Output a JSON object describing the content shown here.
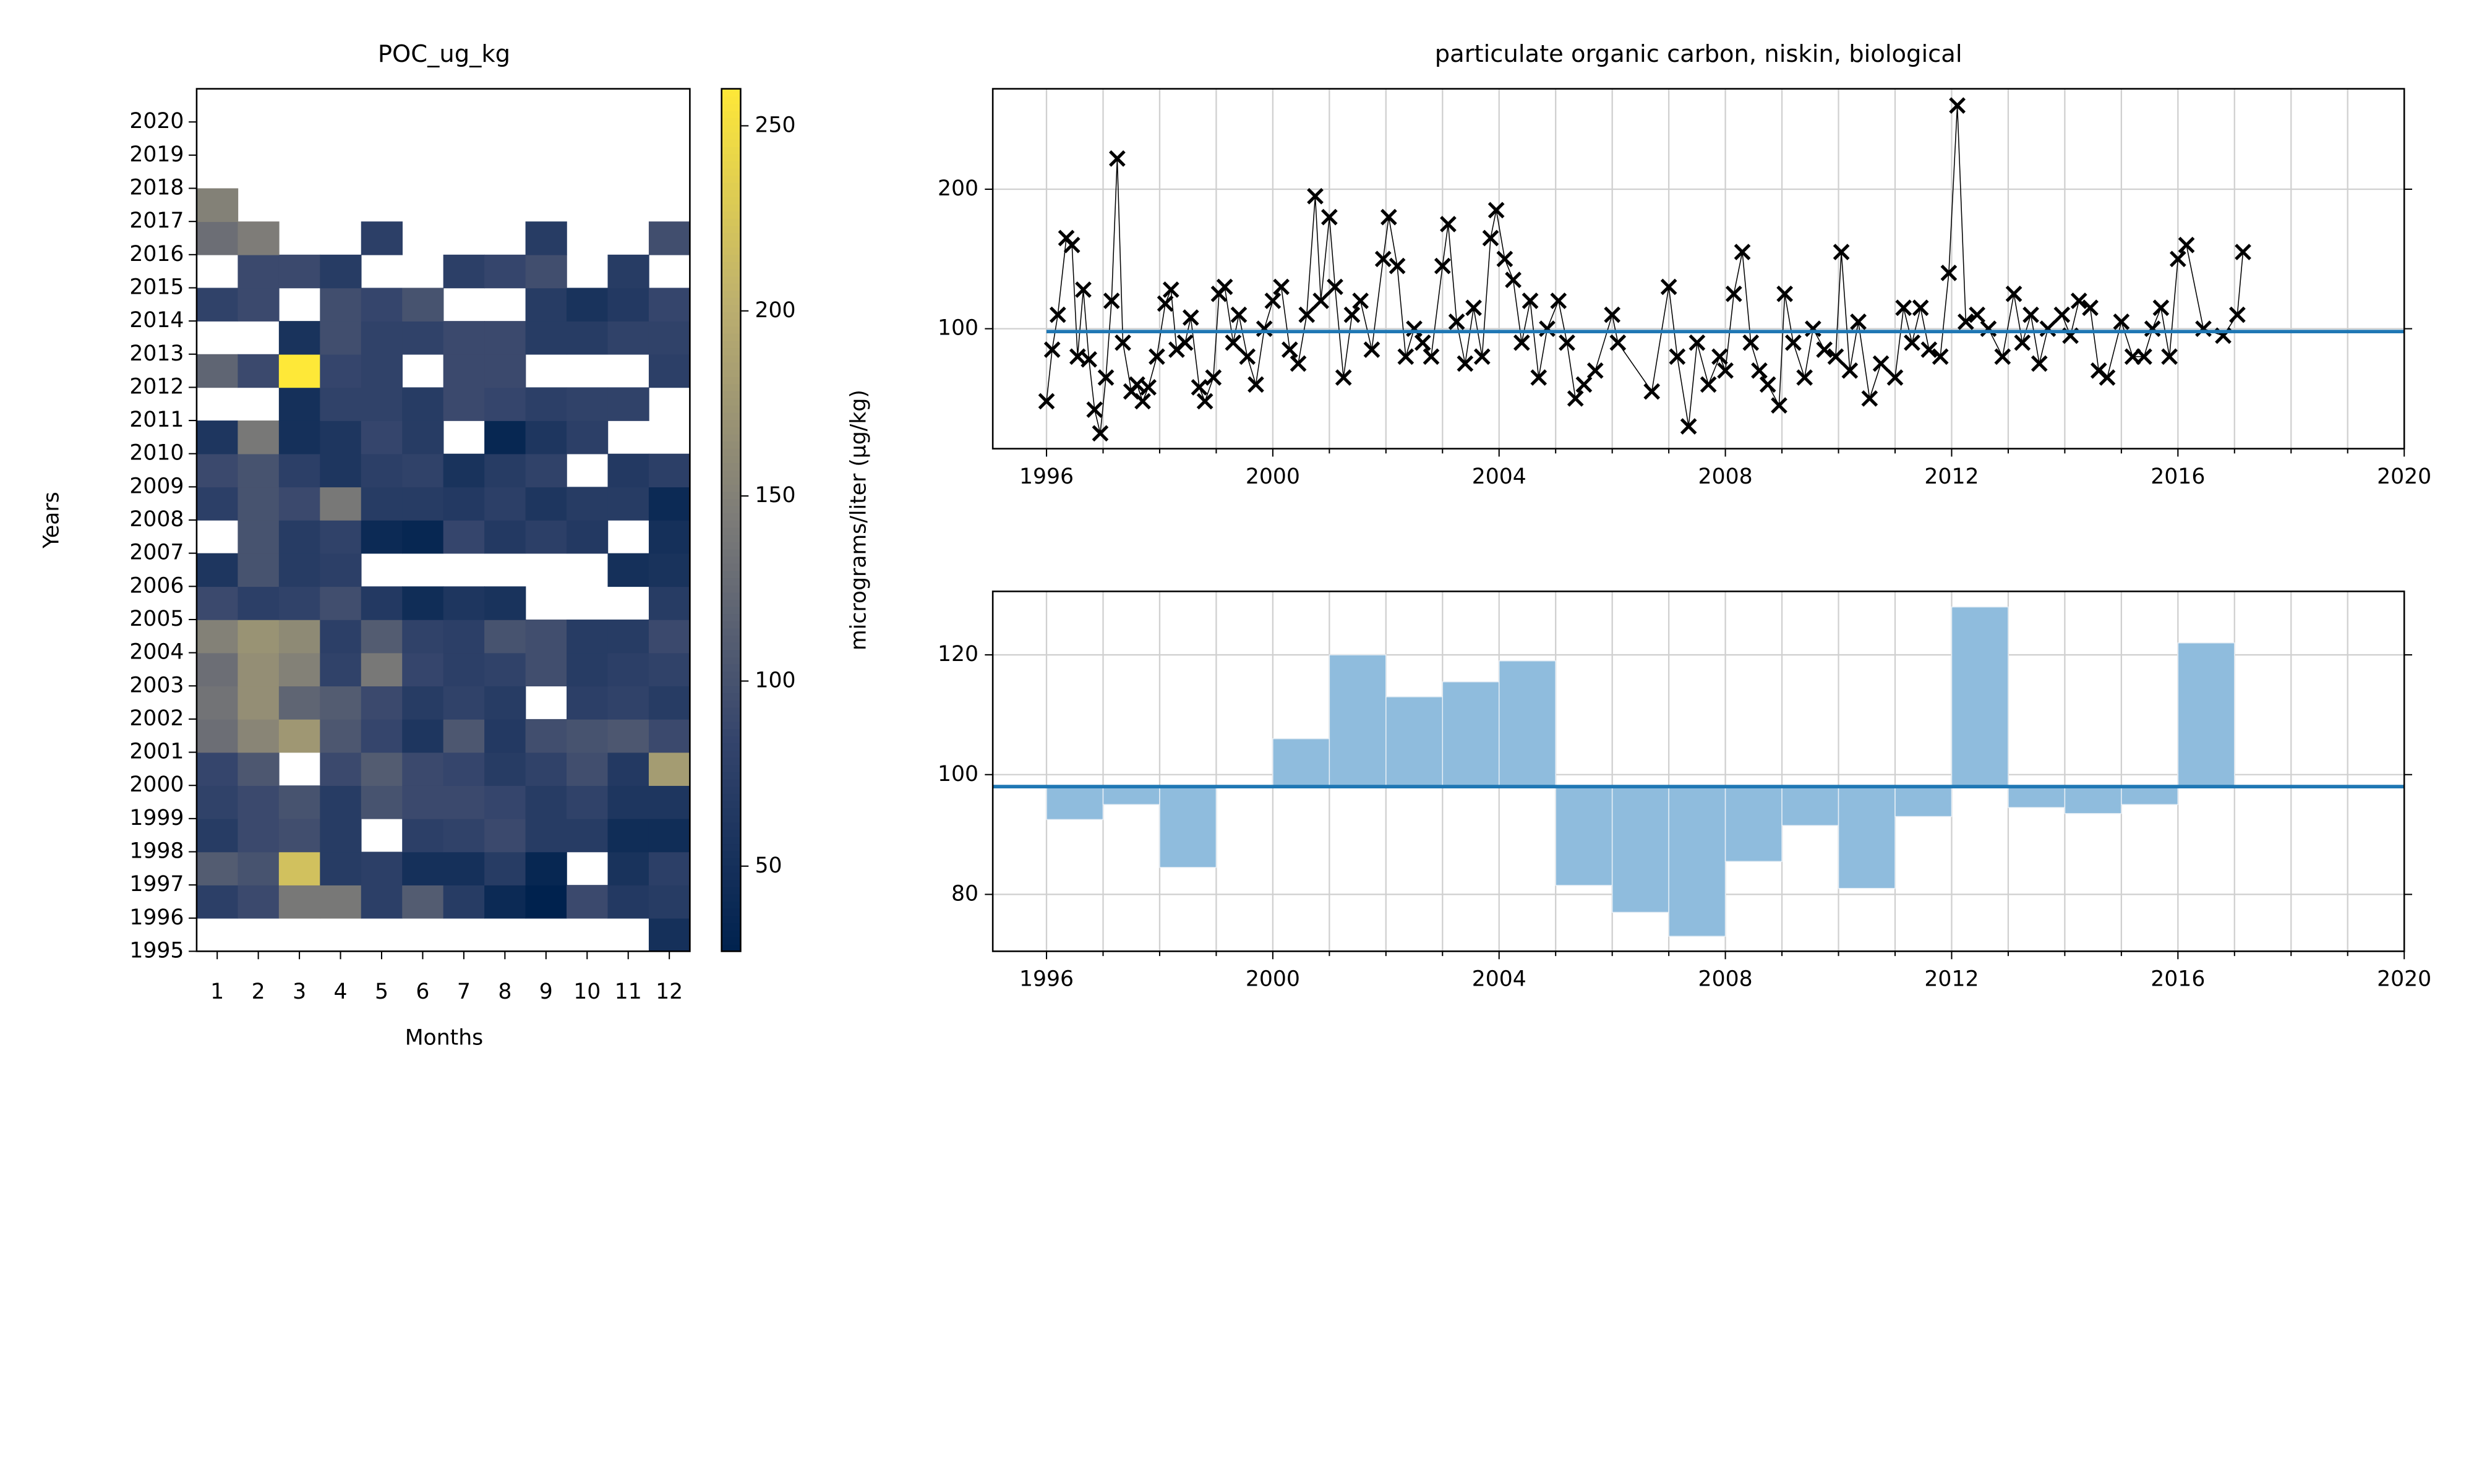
{
  "chart_data": [
    {
      "type": "heatmap",
      "title": "POC_ug_kg",
      "x_label": "Months",
      "y_label": "Years",
      "colorbar_label": "micrograms/liter (µg/kg)",
      "colormap": "cividis",
      "clim": [
        27,
        260
      ],
      "cticks": [
        50,
        100,
        150,
        200,
        250
      ],
      "xlim": [
        0.5,
        12.5
      ],
      "ylim": [
        1995,
        2021
      ],
      "xticks": [
        1,
        2,
        3,
        4,
        5,
        6,
        7,
        8,
        9,
        10,
        11,
        12
      ],
      "yticks": [
        1995,
        1996,
        1997,
        1998,
        1999,
        2000,
        2001,
        2002,
        2003,
        2004,
        2005,
        2006,
        2007,
        2008,
        2009,
        2010,
        2011,
        2012,
        2013,
        2014,
        2015,
        2016,
        2017,
        2018,
        2019,
        2020
      ],
      "x": [
        1,
        2,
        3,
        4,
        5,
        6,
        7,
        8,
        9,
        10,
        11,
        12
      ],
      "y": [
        1996,
        1997,
        1998,
        1999,
        2000,
        2001,
        2002,
        2003,
        2004,
        2005,
        2006,
        2007,
        2008,
        2009,
        2010,
        2011,
        2012,
        2013,
        2014,
        2015,
        2016,
        2017,
        2018
      ],
      "values": [
        [
          null,
          null,
          null,
          null,
          null,
          null,
          null,
          null,
          null,
          null,
          null,
          50
        ],
        [
          75,
          90,
          140,
          140,
          75,
          110,
          70,
          40,
          27,
          90,
          65,
          70
        ],
        [
          110,
          100,
          220,
          70,
          75,
          50,
          50,
          70,
          35,
          null,
          55,
          75
        ],
        [
          70,
          90,
          95,
          70,
          null,
          75,
          80,
          90,
          70,
          70,
          45,
          45
        ],
        [
          80,
          90,
          100,
          70,
          100,
          90,
          90,
          85,
          70,
          80,
          60,
          60
        ],
        [
          85,
          105,
          null,
          90,
          110,
          90,
          85,
          70,
          80,
          95,
          65,
          180
        ],
        [
          130,
          155,
          175,
          105,
          85,
          60,
          105,
          65,
          95,
          100,
          105,
          90
        ],
        [
          135,
          165,
          120,
          110,
          90,
          70,
          80,
          70,
          null,
          75,
          80,
          70
        ],
        [
          130,
          165,
          150,
          80,
          140,
          85,
          75,
          80,
          95,
          70,
          75,
          80
        ],
        [
          150,
          170,
          160,
          75,
          110,
          80,
          75,
          100,
          95,
          70,
          70,
          90
        ],
        [
          90,
          75,
          80,
          95,
          65,
          45,
          60,
          55,
          null,
          null,
          null,
          70
        ],
        [
          60,
          100,
          70,
          75,
          null,
          null,
          null,
          null,
          null,
          null,
          50,
          55
        ],
        [
          null,
          100,
          70,
          80,
          40,
          35,
          85,
          65,
          75,
          65,
          null,
          50
        ],
        [
          75,
          100,
          90,
          140,
          70,
          70,
          65,
          75,
          60,
          70,
          70,
          40
        ],
        [
          90,
          100,
          75,
          60,
          75,
          80,
          55,
          70,
          80,
          null,
          65,
          75
        ],
        [
          60,
          140,
          50,
          60,
          85,
          70,
          null,
          35,
          60,
          75,
          null,
          null
        ],
        [
          null,
          null,
          50,
          80,
          80,
          70,
          90,
          85,
          75,
          80,
          80,
          null
        ],
        [
          120,
          90,
          260,
          85,
          80,
          null,
          90,
          90,
          null,
          null,
          null,
          75
        ],
        [
          null,
          null,
          55,
          95,
          80,
          80,
          90,
          90,
          70,
          70,
          80,
          80
        ],
        [
          80,
          90,
          null,
          95,
          85,
          100,
          null,
          null,
          70,
          55,
          65,
          85
        ],
        [
          null,
          90,
          90,
          70,
          null,
          null,
          75,
          85,
          95,
          null,
          70,
          null
        ],
        [
          130,
          145,
          null,
          null,
          75,
          null,
          null,
          null,
          70,
          null,
          null,
          95
        ],
        [
          150,
          null,
          null,
          null,
          null,
          null,
          null,
          null,
          null,
          null,
          null,
          null
        ]
      ]
    },
    {
      "type": "line",
      "title": "particulate organic carbon, niskin, biological",
      "color": "#000000",
      "marker": "x",
      "xlim": [
        1995.05,
        2020
      ],
      "ylim": [
        14,
        272
      ],
      "xticks": [
        1996,
        2000,
        2004,
        2008,
        2012,
        2016,
        2020
      ],
      "yticks": [
        100,
        200
      ],
      "minor_xticks": [
        1997,
        1998,
        1999,
        2001,
        2002,
        2003,
        2005,
        2006,
        2007,
        2009,
        2010,
        2011,
        2013,
        2014,
        2015,
        2017,
        2018,
        2019
      ],
      "grid": true,
      "hline": 98,
      "hline_color": "#1f77b4",
      "x": [
        1996.0,
        1996.1,
        1996.2,
        1996.35,
        1996.45,
        1996.55,
        1996.65,
        1996.75,
        1996.85,
        1996.95,
        1997.05,
        1997.15,
        1997.25,
        1997.35,
        1997.5,
        1997.6,
        1997.7,
        1997.8,
        1997.95,
        1998.1,
        1998.2,
        1998.3,
        1998.45,
        1998.55,
        1998.7,
        1998.8,
        1998.95,
        1999.05,
        1999.15,
        1999.3,
        1999.4,
        1999.55,
        1999.7,
        1999.85,
        2000.0,
        2000.15,
        2000.3,
        2000.45,
        2000.6,
        2000.75,
        2000.85,
        2001.0,
        2001.1,
        2001.25,
        2001.4,
        2001.55,
        2001.75,
        2001.95,
        2002.05,
        2002.2,
        2002.35,
        2002.5,
        2002.65,
        2002.8,
        2003.0,
        2003.1,
        2003.25,
        2003.4,
        2003.55,
        2003.7,
        2003.85,
        2003.95,
        2004.1,
        2004.25,
        2004.4,
        2004.55,
        2004.7,
        2004.85,
        2005.05,
        2005.2,
        2005.35,
        2005.5,
        2005.7,
        2006.0,
        2006.1,
        2006.7,
        2007.0,
        2007.15,
        2007.35,
        2007.5,
        2007.7,
        2007.9,
        2008.0,
        2008.15,
        2008.3,
        2008.45,
        2008.6,
        2008.75,
        2008.95,
        2009.05,
        2009.2,
        2009.4,
        2009.55,
        2009.75,
        2009.95,
        2010.05,
        2010.2,
        2010.35,
        2010.55,
        2010.75,
        2011.0,
        2011.15,
        2011.3,
        2011.45,
        2011.6,
        2011.8,
        2011.95,
        2012.1,
        2012.25,
        2012.45,
        2012.65,
        2012.9,
        2013.1,
        2013.25,
        2013.4,
        2013.55,
        2013.7,
        2013.95,
        2014.1,
        2014.25,
        2014.45,
        2014.6,
        2014.75,
        2015.0,
        2015.2,
        2015.4,
        2015.55,
        2015.7,
        2015.85,
        2016.0,
        2016.15,
        2016.45,
        2016.8,
        2017.05,
        2017.15
      ],
      "values": [
        48,
        85,
        110,
        165,
        160,
        80,
        128,
        78,
        42,
        25,
        65,
        120,
        222,
        90,
        55,
        60,
        48,
        58,
        80,
        118,
        128,
        85,
        90,
        108,
        58,
        48,
        65,
        125,
        130,
        90,
        110,
        80,
        60,
        100,
        120,
        130,
        85,
        75,
        110,
        195,
        120,
        180,
        130,
        65,
        110,
        120,
        85,
        150,
        180,
        145,
        80,
        100,
        90,
        80,
        145,
        175,
        105,
        75,
        115,
        80,
        165,
        185,
        150,
        135,
        90,
        120,
        65,
        100,
        120,
        90,
        50,
        60,
        70,
        110,
        90,
        55,
        130,
        80,
        30,
        90,
        60,
        80,
        70,
        125,
        155,
        90,
        70,
        60,
        45,
        125,
        90,
        65,
        100,
        85,
        80,
        155,
        70,
        105,
        50,
        75,
        65,
        115,
        90,
        115,
        85,
        80,
        140,
        260,
        105,
        110,
        100,
        80,
        125,
        90,
        110,
        75,
        100,
        110,
        95,
        120,
        115,
        70,
        65,
        105,
        80,
        80,
        100,
        115,
        80,
        150,
        160,
        100,
        95,
        110,
        155
      ]
    },
    {
      "type": "bar",
      "color": "#8fbcdd",
      "bar_base": 98,
      "hline": 98,
      "hline_color": "#1f77b4",
      "grid": true,
      "xlim": [
        1995.05,
        2020
      ],
      "ylim": [
        70.5,
        130.6
      ],
      "xticks": [
        1996,
        2000,
        2004,
        2008,
        2012,
        2016,
        2020
      ],
      "yticks": [
        80,
        100,
        120
      ],
      "minor_xticks": [
        1997,
        1998,
        1999,
        2001,
        2002,
        2003,
        2005,
        2006,
        2007,
        2009,
        2010,
        2011,
        2013,
        2014,
        2015,
        2017,
        2018,
        2019
      ],
      "x": [
        1996,
        1997,
        1998,
        2000,
        2001,
        2002,
        2003,
        2004,
        2005,
        2006,
        2007,
        2008,
        2009,
        2010,
        2011,
        2012,
        2013,
        2014,
        2015,
        2016
      ],
      "values": [
        92.5,
        95,
        84.5,
        106,
        120,
        113,
        115.5,
        119,
        81.5,
        77,
        73,
        85.5,
        91.5,
        81,
        93,
        128,
        94.5,
        93.5,
        95,
        122
      ]
    }
  ]
}
